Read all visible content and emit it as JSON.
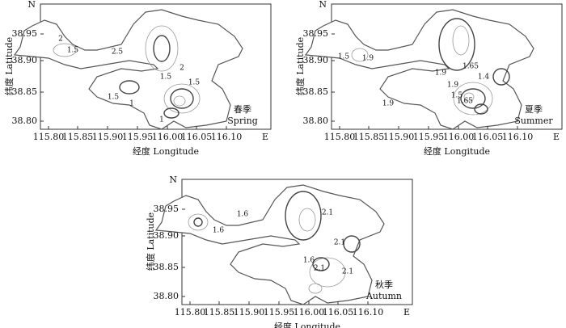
{
  "panels": [
    {
      "season_cn": "春季",
      "season_en": "Spring",
      "north": "N",
      "east": "E",
      "x_label": "经度 Longitude",
      "y_label": "纬度 Latitude",
      "x_ticks": [
        "115.80",
        "115.85",
        "115.90",
        "115.95",
        "116.00",
        "116.05",
        "116.10"
      ],
      "y_ticks": [
        "38.95",
        "38.90",
        "38.85",
        "38.80"
      ],
      "contour_labels": [
        "2",
        "1.5",
        "2.5",
        "2",
        "1.5",
        "1.5",
        "1",
        "1.5",
        "1"
      ]
    },
    {
      "season_cn": "夏季",
      "season_en": "Summer",
      "north": "N",
      "east": "E",
      "x_label": "经度 Longitude",
      "y_label": "纬度 Latitude",
      "x_ticks": [
        "115.80",
        "115.85",
        "115.90",
        "115.95",
        "116.00",
        "116.05",
        "116.10"
      ],
      "y_ticks": [
        "38.95",
        "38.90",
        "38.85",
        "38.80"
      ],
      "contour_labels": [
        "1.5",
        "1.9",
        "1.9",
        "1.65",
        "1.4",
        "1.9",
        "1.5",
        "1.9",
        "1.65"
      ]
    },
    {
      "season_cn": "秋季",
      "season_en": "Autumn",
      "north": "N",
      "east": "E",
      "x_label": "经度 Longitude",
      "y_label": "纬度 Latitude",
      "x_ticks": [
        "115.80",
        "115.85",
        "115.90",
        "115.95",
        "116.00",
        "116.05",
        "116.10"
      ],
      "y_ticks": [
        "38.95",
        "38.90",
        "38.85",
        "38.80"
      ],
      "contour_labels": [
        "1.6",
        "1.6",
        "2.1",
        "2.1",
        "1.6",
        "2.1",
        "2.1"
      ]
    }
  ]
}
